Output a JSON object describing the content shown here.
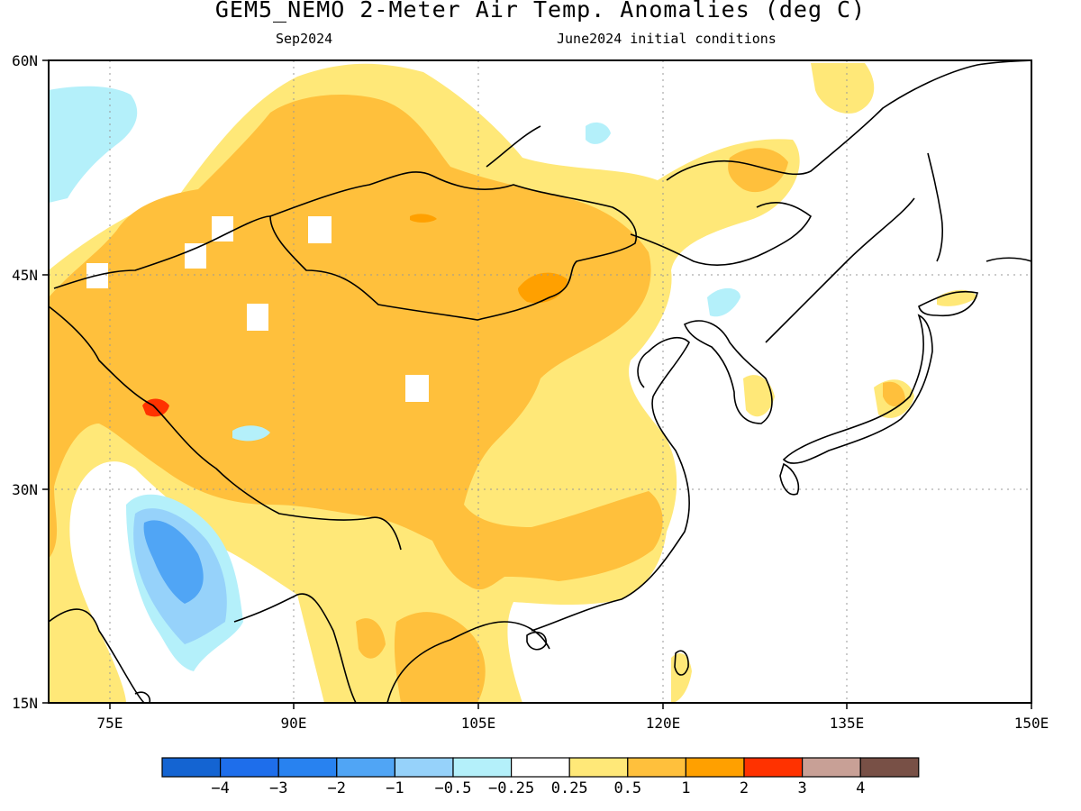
{
  "title": "GEM5_NEMO 2-Meter Air Temp. Anomalies (deg C)",
  "subtitle_left": "Sep2024",
  "subtitle_right": "June2024 initial conditions",
  "map": {
    "lon_range": [
      70,
      150
    ],
    "lat_range": [
      15,
      60
    ],
    "x_ticks": [
      "75E",
      "90E",
      "105E",
      "120E",
      "135E",
      "150E"
    ],
    "y_ticks": [
      "60N",
      "45N",
      "30N",
      "15N"
    ],
    "grid": "dotted"
  },
  "colorbar": {
    "colors": [
      "#1464d2",
      "#1e6eeb",
      "#2882f0",
      "#50a5f5",
      "#96d2fa",
      "#b4f0fa",
      "#ffffff",
      "#ffe878",
      "#ffc03c",
      "#ffa000",
      "#ff3200",
      "#c8a096",
      "#785046"
    ],
    "labels": [
      "-4",
      "-3",
      "-2",
      "-1",
      "-0.5",
      "-0.25",
      "0.25",
      "0.5",
      "1",
      "2",
      "3",
      "4"
    ]
  }
}
